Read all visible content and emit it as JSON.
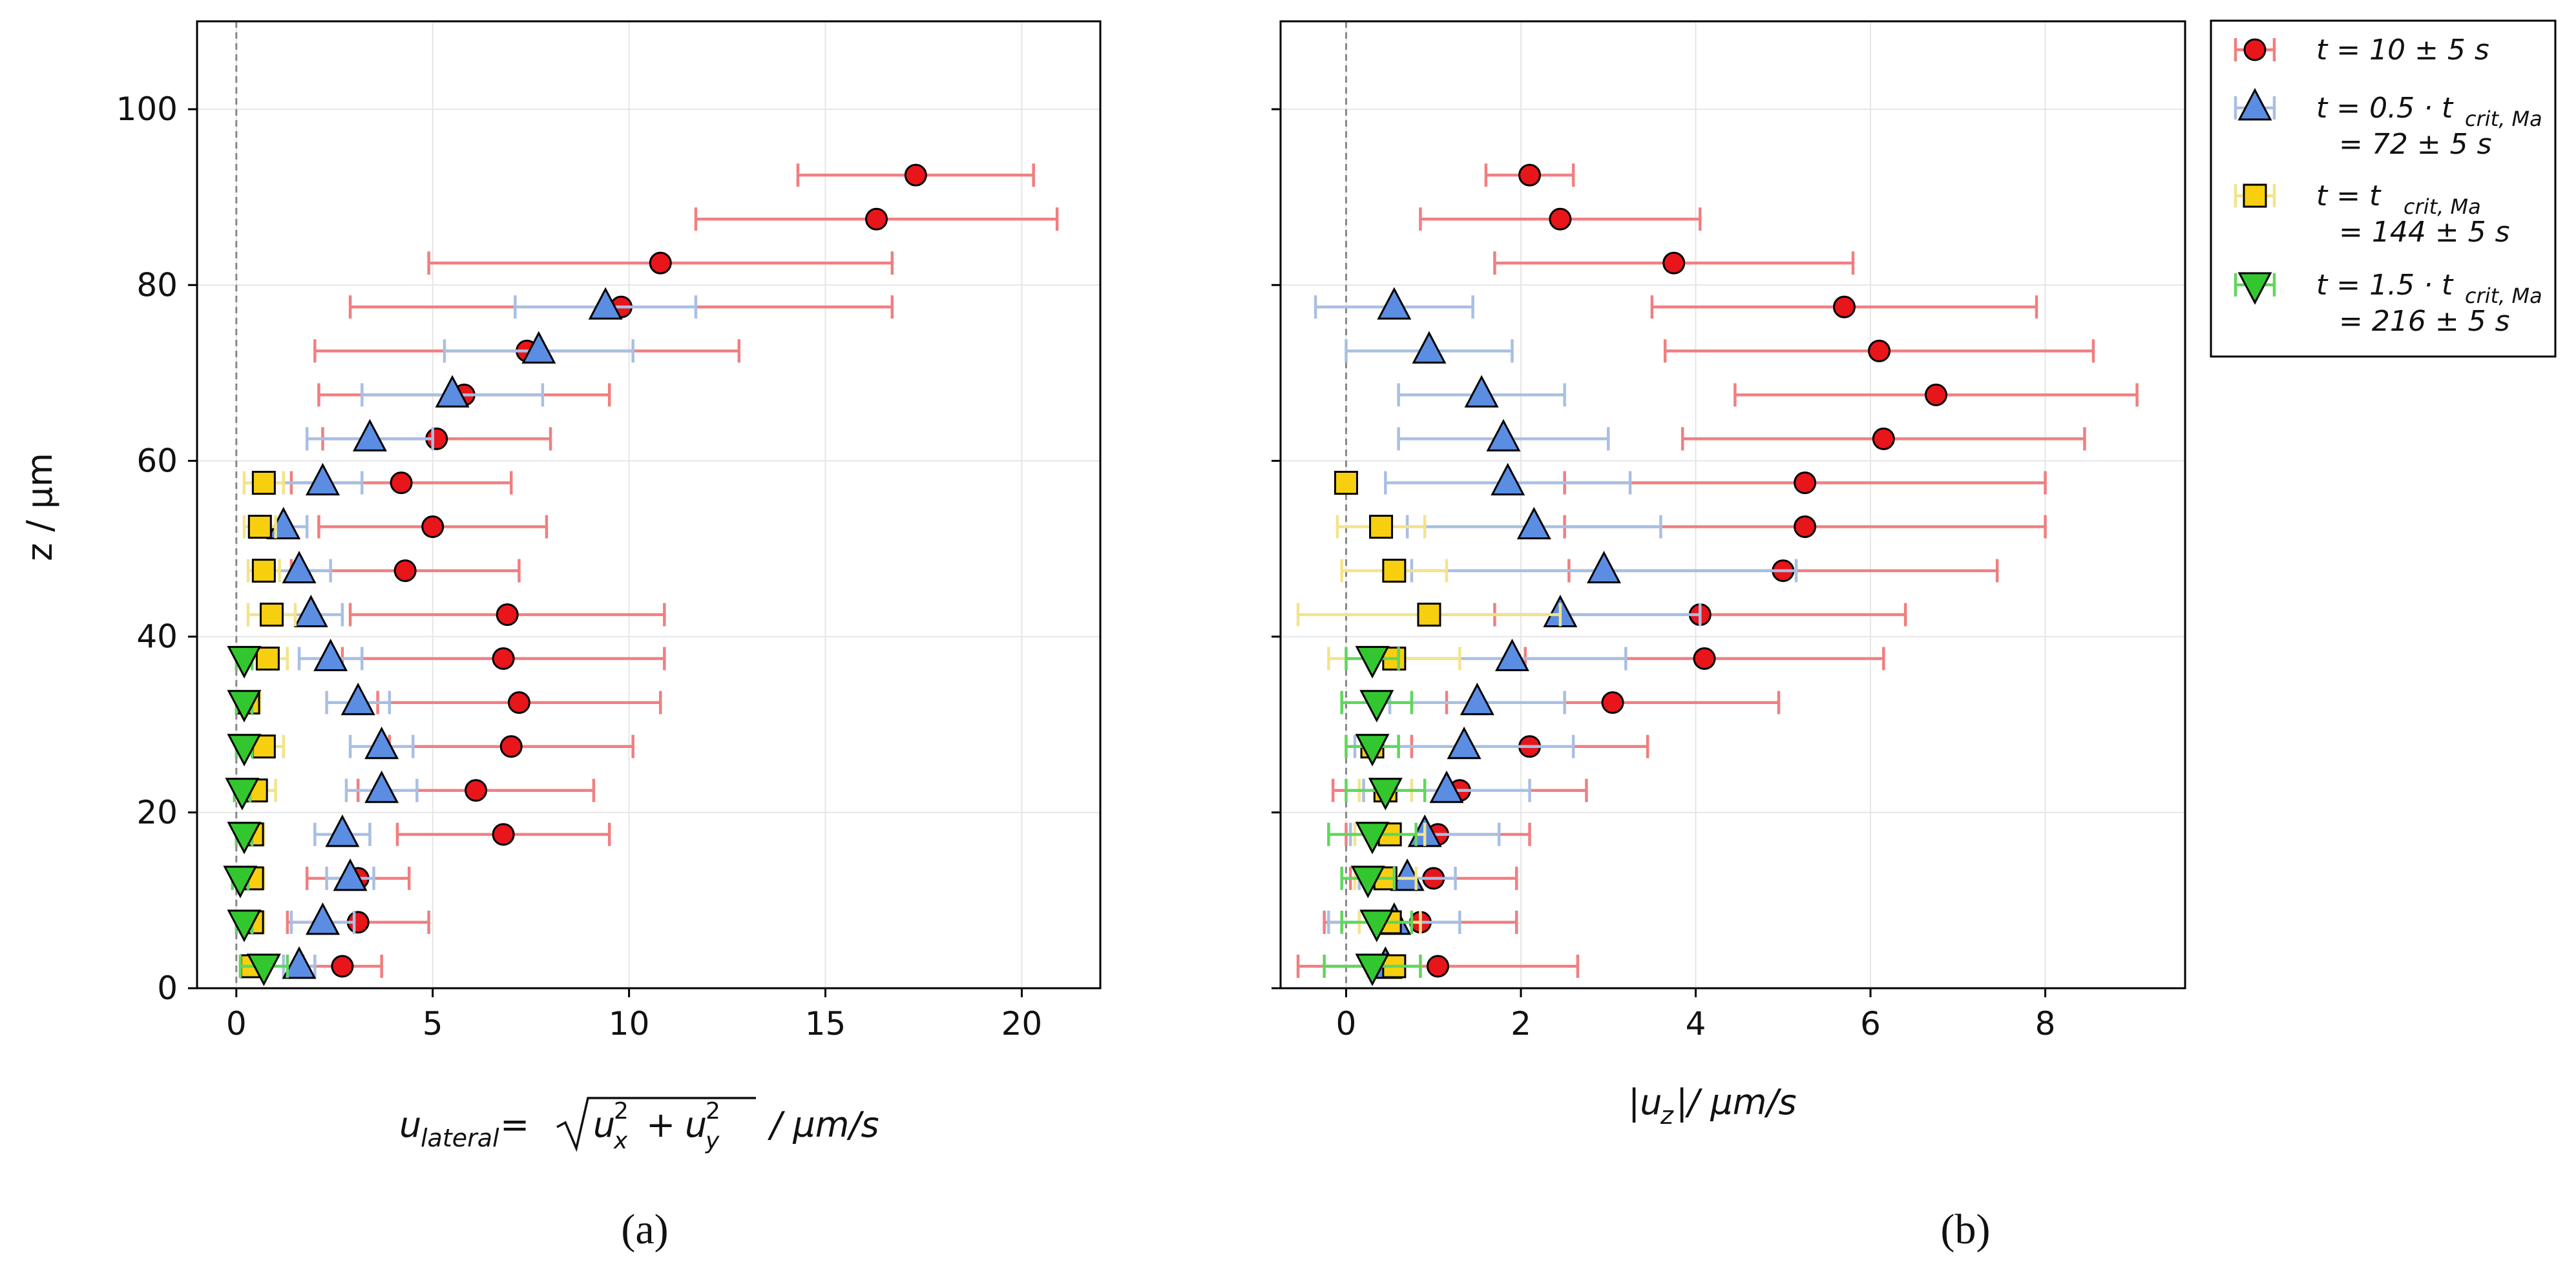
{
  "colors": {
    "red_marker": "#e8151b",
    "red_bar": "#f07f80",
    "blue_marker": "#5b8de3",
    "blue_bar": "#a9bfe3",
    "yellow_marker": "#f7cf0f",
    "yellow_bar": "#f3e48a",
    "green_marker": "#33c72f",
    "green_bar": "#5fd75c",
    "grid": "#e6e6e6",
    "zero_line": "#888888"
  },
  "panel_labels": {
    "a": "(a)",
    "b": "(b)"
  },
  "legend": {
    "s1": {
      "line1": "t = 10 ± 5 s"
    },
    "s2": {
      "line1": "t = 0.5 · t",
      "sub": "crit, Ma",
      "line2": "= 72 ± 5 s"
    },
    "s3": {
      "line1": "t = t",
      "sub": "crit, Ma",
      "line2": "= 144 ± 5 s"
    },
    "s4": {
      "line1": "t = 1.5 · t",
      "sub": "crit, Ma",
      "line2": "= 216 ± 5 s"
    }
  },
  "chart_data": [
    {
      "type": "scatter",
      "panel": "a",
      "title": "",
      "xlabel": "u_lateral = √(u_x² + u_y²) / µm/s",
      "xlabel_parts": {
        "u": "u",
        "sub": "lateral",
        "eq": " = ",
        "ux": "u",
        "uxsub": "x",
        "uy": "u",
        "uysub": "y",
        "plus": "+",
        "two": "2",
        "unit": "/ µm/s"
      },
      "ylabel": "z / µm",
      "xlim": [
        -1.0,
        22.0
      ],
      "ylim": [
        0,
        110
      ],
      "xticks": [
        0,
        5,
        10,
        15,
        20
      ],
      "yticks": [
        0,
        20,
        40,
        60,
        80,
        100
      ],
      "grid": true,
      "series": [
        {
          "name": "t = 10 ± 5 s",
          "marker": "circle",
          "points": [
            {
              "z": 92.5,
              "x": 17.3,
              "err": 3.0
            },
            {
              "z": 87.5,
              "x": 16.3,
              "err": 4.6
            },
            {
              "z": 82.5,
              "x": 10.8,
              "err": 5.9
            },
            {
              "z": 77.5,
              "x": 9.8,
              "err": 6.9
            },
            {
              "z": 72.5,
              "x": 7.4,
              "err": 5.4
            },
            {
              "z": 67.5,
              "x": 5.8,
              "err": 3.7
            },
            {
              "z": 62.5,
              "x": 5.1,
              "err": 2.9
            },
            {
              "z": 57.5,
              "x": 4.2,
              "err": 2.8
            },
            {
              "z": 52.5,
              "x": 5.0,
              "err": 2.9
            },
            {
              "z": 47.5,
              "x": 4.3,
              "err": 2.9
            },
            {
              "z": 42.5,
              "x": 6.9,
              "err": 4.0
            },
            {
              "z": 37.5,
              "x": 6.8,
              "err": 4.1
            },
            {
              "z": 32.5,
              "x": 7.2,
              "err": 3.6
            },
            {
              "z": 27.5,
              "x": 7.0,
              "err": 3.1
            },
            {
              "z": 22.5,
              "x": 6.1,
              "err": 3.0
            },
            {
              "z": 17.5,
              "x": 6.8,
              "err": 2.7
            },
            {
              "z": 12.5,
              "x": 3.1,
              "err": 1.3
            },
            {
              "z": 7.5,
              "x": 3.1,
              "err": 1.8
            },
            {
              "z": 2.5,
              "x": 2.7,
              "err": 1.0
            }
          ]
        },
        {
          "name": "t = 0.5 · t_crit,Ma = 72 ± 5 s",
          "marker": "triangle-up",
          "points": [
            {
              "z": 77.5,
              "x": 9.4,
              "err": 2.3
            },
            {
              "z": 72.5,
              "x": 7.7,
              "err": 2.4
            },
            {
              "z": 67.5,
              "x": 5.5,
              "err": 2.3
            },
            {
              "z": 62.5,
              "x": 3.4,
              "err": 1.6
            },
            {
              "z": 57.5,
              "x": 2.2,
              "err": 1.0
            },
            {
              "z": 52.5,
              "x": 1.2,
              "err": 0.6
            },
            {
              "z": 47.5,
              "x": 1.6,
              "err": 0.8
            },
            {
              "z": 42.5,
              "x": 1.9,
              "err": 0.8
            },
            {
              "z": 37.5,
              "x": 2.4,
              "err": 0.8
            },
            {
              "z": 32.5,
              "x": 3.1,
              "err": 0.8
            },
            {
              "z": 27.5,
              "x": 3.7,
              "err": 0.8
            },
            {
              "z": 22.5,
              "x": 3.7,
              "err": 0.9
            },
            {
              "z": 17.5,
              "x": 2.7,
              "err": 0.7
            },
            {
              "z": 12.5,
              "x": 2.9,
              "err": 0.6
            },
            {
              "z": 7.5,
              "x": 2.2,
              "err": 0.8
            },
            {
              "z": 2.5,
              "x": 1.6,
              "err": 0.4
            }
          ]
        },
        {
          "name": "t = t_crit,Ma = 144 ± 5 s",
          "marker": "square",
          "points": [
            {
              "z": 57.5,
              "x": 0.7,
              "err": 0.5
            },
            {
              "z": 52.5,
              "x": 0.6,
              "err": 0.4
            },
            {
              "z": 47.5,
              "x": 0.7,
              "err": 0.4
            },
            {
              "z": 42.5,
              "x": 0.9,
              "err": 0.6
            },
            {
              "z": 37.5,
              "x": 0.8,
              "err": 0.5
            },
            {
              "z": 32.5,
              "x": 0.3,
              "err": 0.3
            },
            {
              "z": 27.5,
              "x": 0.7,
              "err": 0.5
            },
            {
              "z": 22.5,
              "x": 0.5,
              "err": 0.5
            },
            {
              "z": 17.5,
              "x": 0.4,
              "err": 0.3
            },
            {
              "z": 12.5,
              "x": 0.4,
              "err": 0.3
            },
            {
              "z": 7.5,
              "x": 0.4,
              "err": 0.3
            },
            {
              "z": 2.5,
              "x": 0.4,
              "err": 0.3
            }
          ]
        },
        {
          "name": "t = 1.5 · t_crit,Ma = 216 ± 5 s",
          "marker": "triangle-down",
          "points": [
            {
              "z": 37.5,
              "x": 0.2,
              "err": 0.2
            },
            {
              "z": 32.5,
              "x": 0.2,
              "err": 0.2
            },
            {
              "z": 27.5,
              "x": 0.2,
              "err": 0.2
            },
            {
              "z": 22.5,
              "x": 0.15,
              "err": 0.2
            },
            {
              "z": 17.5,
              "x": 0.2,
              "err": 0.2
            },
            {
              "z": 12.5,
              "x": 0.1,
              "err": 0.2
            },
            {
              "z": 7.5,
              "x": 0.2,
              "err": 0.2
            },
            {
              "z": 2.5,
              "x": 0.7,
              "err": 0.6
            }
          ]
        }
      ]
    },
    {
      "type": "scatter",
      "panel": "b",
      "title": "",
      "xlabel": "|u_z| / µm/s",
      "xlabel_parts": {
        "bar1": "|u",
        "sub": "z",
        "bar2": "|",
        "unit": " / µm/s"
      },
      "ylabel": "",
      "xlim": [
        -0.75,
        9.6
      ],
      "ylim": [
        0,
        110
      ],
      "xticks": [
        0,
        2,
        4,
        6,
        8
      ],
      "yticks": [
        0,
        20,
        40,
        60,
        80,
        100
      ],
      "grid": true,
      "series": [
        {
          "name": "t = 10 ± 5 s",
          "marker": "circle",
          "points": [
            {
              "z": 92.5,
              "x": 2.1,
              "err": 0.5
            },
            {
              "z": 87.5,
              "x": 2.45,
              "err": 1.6
            },
            {
              "z": 82.5,
              "x": 3.75,
              "err": 2.05
            },
            {
              "z": 77.5,
              "x": 5.7,
              "err": 2.2
            },
            {
              "z": 72.5,
              "x": 6.1,
              "err": 2.45
            },
            {
              "z": 67.5,
              "x": 6.75,
              "err": 2.3
            },
            {
              "z": 62.5,
              "x": 6.15,
              "err": 2.3
            },
            {
              "z": 57.5,
              "x": 5.25,
              "err": 2.75
            },
            {
              "z": 52.5,
              "x": 5.25,
              "err": 2.75
            },
            {
              "z": 47.5,
              "x": 5.0,
              "err": 2.45
            },
            {
              "z": 42.5,
              "x": 4.05,
              "err": 2.35
            },
            {
              "z": 37.5,
              "x": 4.1,
              "err": 2.05
            },
            {
              "z": 32.5,
              "x": 3.05,
              "err": 1.9
            },
            {
              "z": 27.5,
              "x": 2.1,
              "err": 1.35
            },
            {
              "z": 22.5,
              "x": 1.3,
              "err": 1.45
            },
            {
              "z": 17.5,
              "x": 1.05,
              "err": 1.05
            },
            {
              "z": 12.5,
              "x": 1.0,
              "err": 0.95
            },
            {
              "z": 7.5,
              "x": 0.85,
              "err": 1.1
            },
            {
              "z": 2.5,
              "x": 1.05,
              "err": 1.6
            }
          ]
        },
        {
          "name": "t = 0.5 · t_crit,Ma = 72 ± 5 s",
          "marker": "triangle-up",
          "points": [
            {
              "z": 77.5,
              "x": 0.55,
              "err": 0.9
            },
            {
              "z": 72.5,
              "x": 0.95,
              "err": 0.95
            },
            {
              "z": 67.5,
              "x": 1.55,
              "err": 0.95
            },
            {
              "z": 62.5,
              "x": 1.8,
              "err": 1.2
            },
            {
              "z": 57.5,
              "x": 1.85,
              "err": 1.4
            },
            {
              "z": 52.5,
              "x": 2.15,
              "err": 1.45
            },
            {
              "z": 47.5,
              "x": 2.95,
              "err": 2.2
            },
            {
              "z": 42.5,
              "x": 2.45,
              "err": 1.6
            },
            {
              "z": 37.5,
              "x": 1.9,
              "err": 1.3
            },
            {
              "z": 32.5,
              "x": 1.5,
              "err": 1.0
            },
            {
              "z": 27.5,
              "x": 1.35,
              "err": 1.25
            },
            {
              "z": 22.5,
              "x": 1.15,
              "err": 0.95
            },
            {
              "z": 17.5,
              "x": 0.9,
              "err": 0.85
            },
            {
              "z": 12.5,
              "x": 0.7,
              "err": 0.55
            },
            {
              "z": 7.5,
              "x": 0.55,
              "err": 0.75
            },
            {
              "z": 2.5,
              "x": 0.45,
              "err": 0.2
            }
          ]
        },
        {
          "name": "t = t_crit,Ma = 144 ± 5 s",
          "marker": "square",
          "points": [
            {
              "z": 57.5,
              "x": 0.0,
              "err": 0.1
            },
            {
              "z": 52.5,
              "x": 0.4,
              "err": 0.5
            },
            {
              "z": 47.5,
              "x": 0.55,
              "err": 0.6
            },
            {
              "z": 42.5,
              "x": 0.95,
              "err": 1.5
            },
            {
              "z": 37.5,
              "x": 0.55,
              "err": 0.75
            },
            {
              "z": 27.5,
              "x": 0.3,
              "err": 0.3
            },
            {
              "z": 22.5,
              "x": 0.45,
              "err": 0.3
            },
            {
              "z": 17.5,
              "x": 0.5,
              "err": 0.4
            },
            {
              "z": 12.5,
              "x": 0.45,
              "err": 0.35
            },
            {
              "z": 7.5,
              "x": 0.5,
              "err": 0.35
            },
            {
              "z": 2.5,
              "x": 0.55,
              "err": 0.3
            }
          ]
        },
        {
          "name": "t = 1.5 · t_crit,Ma = 216 ± 5 s",
          "marker": "triangle-down",
          "points": [
            {
              "z": 37.5,
              "x": 0.3,
              "err": 0.3
            },
            {
              "z": 32.5,
              "x": 0.35,
              "err": 0.4
            },
            {
              "z": 27.5,
              "x": 0.3,
              "err": 0.3
            },
            {
              "z": 22.5,
              "x": 0.45,
              "err": 0.45
            },
            {
              "z": 17.5,
              "x": 0.3,
              "err": 0.5
            },
            {
              "z": 12.5,
              "x": 0.25,
              "err": 0.3
            },
            {
              "z": 7.5,
              "x": 0.35,
              "err": 0.4
            },
            {
              "z": 2.5,
              "x": 0.3,
              "err": 0.55
            }
          ]
        }
      ]
    }
  ]
}
